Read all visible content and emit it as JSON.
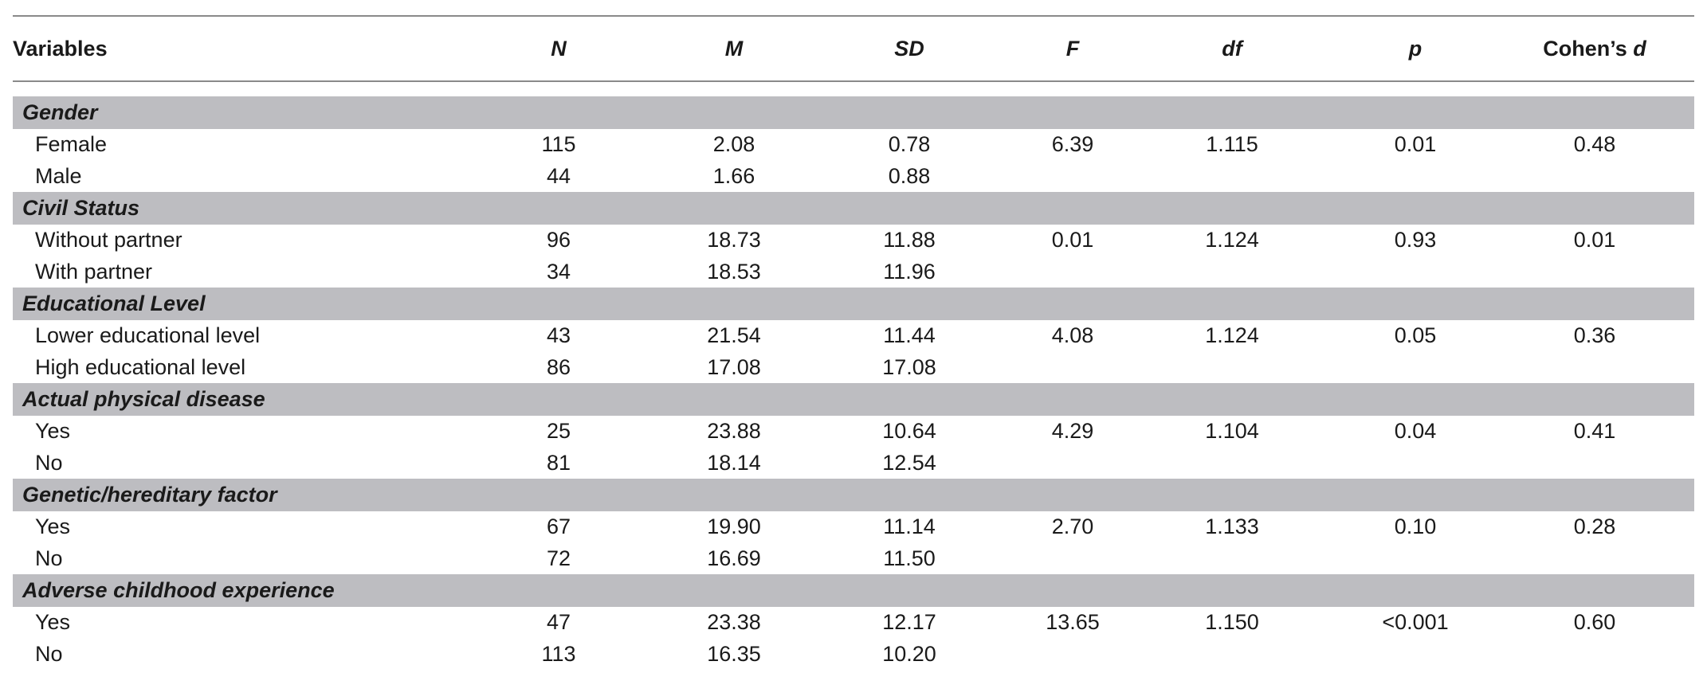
{
  "header": {
    "variables": "Variables",
    "n": "N",
    "m": "M",
    "sd": "SD",
    "f": "F",
    "df": "df",
    "p": "p",
    "cohens_prefix": "Cohen’s ",
    "cohens_d": "d"
  },
  "groups": [
    {
      "label": "Gender",
      "rows": [
        {
          "label": "Female",
          "n": "115",
          "m": "2.08",
          "sd": "0.78",
          "f": "6.39",
          "df": "1.115",
          "p": "0.01",
          "d": "0.48"
        },
        {
          "label": "Male",
          "n": "44",
          "m": "1.66",
          "sd": "0.88",
          "f": "",
          "df": "",
          "p": "",
          "d": ""
        }
      ]
    },
    {
      "label": "Civil Status",
      "rows": [
        {
          "label": "Without partner",
          "n": "96",
          "m": "18.73",
          "sd": "11.88",
          "f": "0.01",
          "df": "1.124",
          "p": "0.93",
          "d": "0.01"
        },
        {
          "label": "With partner",
          "n": "34",
          "m": "18.53",
          "sd": "11.96",
          "f": "",
          "df": "",
          "p": "",
          "d": ""
        }
      ]
    },
    {
      "label": "Educational Level",
      "rows": [
        {
          "label": "Lower educational level",
          "n": "43",
          "m": "21.54",
          "sd": "11.44",
          "f": "4.08",
          "df": "1.124",
          "p": "0.05",
          "d": "0.36"
        },
        {
          "label": "High educational level",
          "n": "86",
          "m": "17.08",
          "sd": "17.08",
          "f": "",
          "df": "",
          "p": "",
          "d": ""
        }
      ]
    },
    {
      "label": "Actual physical disease",
      "rows": [
        {
          "label": "Yes",
          "n": "25",
          "m": "23.88",
          "sd": "10.64",
          "f": "4.29",
          "df": "1.104",
          "p": "0.04",
          "d": "0.41"
        },
        {
          "label": "No",
          "n": "81",
          "m": "18.14",
          "sd": "12.54",
          "f": "",
          "df": "",
          "p": "",
          "d": ""
        }
      ]
    },
    {
      "label": "Genetic/hereditary factor",
      "rows": [
        {
          "label": "Yes",
          "n": "67",
          "m": "19.90",
          "sd": "11.14",
          "f": "2.70",
          "df": "1.133",
          "p": "0.10",
          "d": "0.28"
        },
        {
          "label": "No",
          "n": "72",
          "m": "16.69",
          "sd": "11.50",
          "f": "",
          "df": "",
          "p": "",
          "d": ""
        }
      ]
    },
    {
      "label": "Adverse childhood experience",
      "rows": [
        {
          "label": "Yes",
          "n": "47",
          "m": "23.38",
          "sd": "12.17",
          "f": "13.65",
          "df": "1.150",
          "p": "<0.001",
          "d": "0.60"
        },
        {
          "label": "No",
          "n": "113",
          "m": "16.35",
          "sd": "10.20",
          "f": "",
          "df": "",
          "p": "",
          "d": ""
        }
      ]
    }
  ]
}
